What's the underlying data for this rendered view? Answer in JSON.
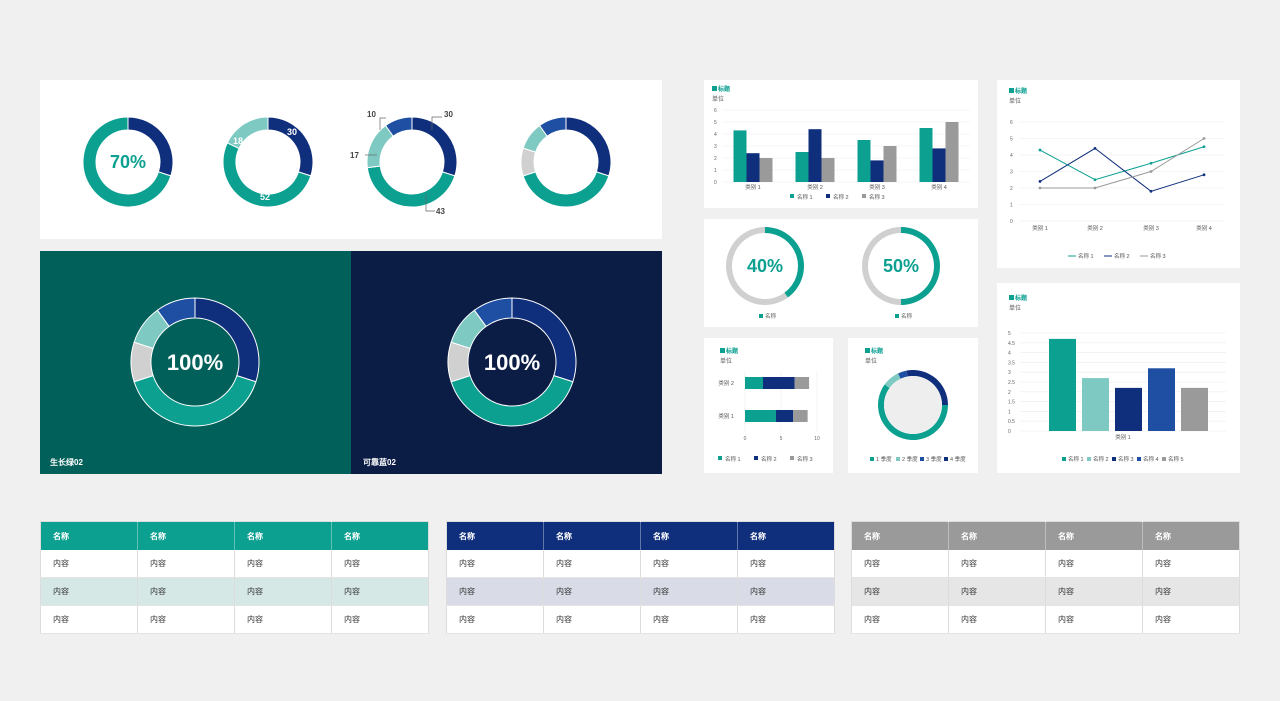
{
  "colors": {
    "teal": "#0ca091",
    "navy": "#0f2e7c",
    "mid_blue": "#1f4fa3",
    "light_teal": "#7ecac3",
    "gray": "#9a9a9a",
    "light_gray": "#d0d0d0",
    "dark_teal": "#02605a",
    "dark_navy": "#0b1c45"
  },
  "donut_row": {
    "d1": {
      "center_text": "70%"
    },
    "d2": {
      "labels": {
        "a": "30",
        "b": "52",
        "c": "18"
      }
    },
    "d3": {
      "labels": {
        "a": "30",
        "b": "43",
        "c": "17",
        "d": "10"
      }
    }
  },
  "dark_panels": {
    "left": {
      "center_text": "100%",
      "caption": "生长绿02"
    },
    "right": {
      "center_text": "100%",
      "caption": "可靠蓝02"
    }
  },
  "chart_data": [
    {
      "type": "bar",
      "id": "bar-top",
      "title": "■ 标题",
      "ylabel": "单位",
      "categories": [
        "类别 1",
        "类别 2",
        "类别 3",
        "类别 4"
      ],
      "series": [
        {
          "name": "名称 1",
          "values": [
            4.3,
            2.5,
            3.5,
            4.5
          ]
        },
        {
          "name": "名称 2",
          "values": [
            2.4,
            4.4,
            1.8,
            2.8
          ]
        },
        {
          "name": "名称 3",
          "values": [
            2.0,
            2.0,
            3.0,
            5.0
          ]
        }
      ],
      "ylim": [
        0,
        6
      ],
      "yticks": [
        "0",
        "1",
        "2",
        "3",
        "4",
        "5",
        "6"
      ]
    },
    {
      "type": "line",
      "id": "line-top",
      "title": "■ 标题",
      "ylabel": "单位",
      "categories": [
        "类别 1",
        "类别 2",
        "类别 3",
        "类别 4"
      ],
      "series": [
        {
          "name": "名称 1",
          "values": [
            4.3,
            2.5,
            3.5,
            4.5
          ]
        },
        {
          "name": "名称 2",
          "values": [
            2.4,
            4.4,
            1.8,
            2.8
          ]
        },
        {
          "name": "名称 3",
          "values": [
            2.0,
            2.0,
            3.0,
            5.0
          ]
        }
      ],
      "ylim": [
        0,
        6
      ],
      "yticks": [
        "0",
        "1",
        "2",
        "3",
        "4",
        "5",
        "6"
      ]
    },
    {
      "type": "pie",
      "id": "pct-40",
      "center_text": "40%",
      "legend": "名称",
      "values": [
        40,
        60
      ]
    },
    {
      "type": "pie",
      "id": "pct-50",
      "center_text": "50%",
      "legend": "名称",
      "values": [
        50,
        50
      ]
    },
    {
      "type": "bar",
      "id": "hbar",
      "title": "■ 标题",
      "ylabel": "单位",
      "orientation": "horizontal",
      "stacked": true,
      "categories": [
        "类别 1",
        "类别 2"
      ],
      "series": [
        {
          "name": "名称 1",
          "values": [
            4.3,
            2.5
          ]
        },
        {
          "name": "名称 2",
          "values": [
            2.4,
            4.4
          ]
        },
        {
          "name": "名称 3",
          "values": [
            2.0,
            2.0
          ]
        }
      ],
      "xlim": [
        0,
        10
      ],
      "xticks": [
        "0",
        "5",
        "10"
      ]
    },
    {
      "type": "pie",
      "id": "quarter-donut",
      "title": "■ 标题",
      "ylabel": "单位",
      "categories": [
        "1 季度",
        "2 季度",
        "3 季度",
        "4 季度"
      ],
      "values": [
        60,
        8,
        4,
        28
      ]
    },
    {
      "type": "bar",
      "id": "bar-5",
      "title": "■ 标题",
      "ylabel": "单位",
      "categories": [
        "类别 1"
      ],
      "series": [
        {
          "name": "名称 1",
          "values": [
            4.7
          ]
        },
        {
          "name": "名称 2",
          "values": [
            2.7
          ]
        },
        {
          "name": "名称 3",
          "values": [
            2.2
          ]
        },
        {
          "name": "名称 4",
          "values": [
            3.2
          ]
        },
        {
          "name": "名称 5",
          "values": [
            2.2
          ]
        }
      ],
      "ylim": [
        0,
        5
      ],
      "yticks": [
        "0",
        "0.5",
        "1",
        "1.5",
        "2",
        "2.5",
        "3",
        "3.5",
        "4",
        "4.5",
        "5"
      ]
    }
  ],
  "tables": [
    {
      "color": "#0ca091",
      "stripe": "#d6e8e5",
      "headers": [
        "名称",
        "名称",
        "名称",
        "名称"
      ],
      "rows": [
        [
          "内容",
          "内容",
          "内容",
          "内容"
        ],
        [
          "内容",
          "内容",
          "内容",
          "内容"
        ],
        [
          "内容",
          "内容",
          "内容",
          "内容"
        ]
      ]
    },
    {
      "color": "#0f2e7c",
      "stripe": "#d9dbe6",
      "headers": [
        "名称",
        "名称",
        "名称",
        "名称"
      ],
      "rows": [
        [
          "内容",
          "内容",
          "内容",
          "内容"
        ],
        [
          "内容",
          "内容",
          "内容",
          "内容"
        ],
        [
          "内容",
          "内容",
          "内容",
          "内容"
        ]
      ]
    },
    {
      "color": "#9a9a9a",
      "stripe": "#e6e6e6",
      "headers": [
        "名称",
        "名称",
        "名称",
        "名称"
      ],
      "rows": [
        [
          "内容",
          "内容",
          "内容",
          "内容"
        ],
        [
          "内容",
          "内容",
          "内容",
          "内容"
        ],
        [
          "内容",
          "内容",
          "内容",
          "内容"
        ]
      ]
    }
  ]
}
